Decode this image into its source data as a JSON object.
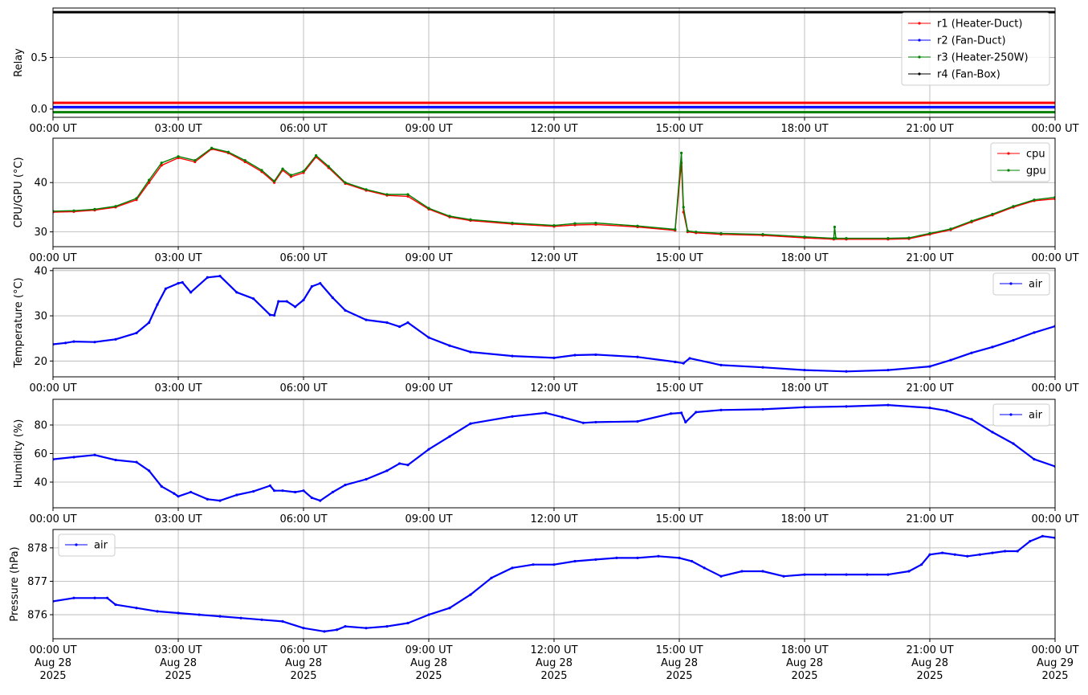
{
  "chart_data": [
    {
      "type": "line",
      "ylabel": "Relay",
      "ylim": [
        -0.08,
        0.98
      ],
      "yticks": [
        0.0,
        0.5
      ],
      "ytick_labels": [
        "0.0",
        "0.5"
      ],
      "grid": true,
      "legend_placement": "top-right",
      "x_tick_labels": [
        "00:00 UT",
        "03:00 UT",
        "06:00 UT",
        "09:00 UT",
        "12:00 UT",
        "15:00 UT",
        "18:00 UT",
        "21:00 UT",
        "00:00 UT"
      ],
      "series": [
        {
          "name": "r1 (Heater-Duct)",
          "color": "#ff0000",
          "x": [
            0,
            24
          ],
          "values": [
            0.06,
            0.06
          ]
        },
        {
          "name": "r2 (Fan-Duct)",
          "color": "#0000ff",
          "x": [
            0,
            24
          ],
          "values": [
            0.02,
            0.02
          ]
        },
        {
          "name": "r3 (Heater-250W)",
          "color": "#008000",
          "x": [
            0,
            24
          ],
          "values": [
            -0.03,
            -0.03
          ]
        },
        {
          "name": "r4 (Fan-Box)",
          "color": "#000000",
          "x": [
            0,
            24
          ],
          "values": [
            0.94,
            0.94
          ]
        }
      ]
    },
    {
      "type": "line",
      "ylabel": "CPU/GPU (°C)",
      "ylim": [
        27,
        49
      ],
      "yticks": [
        30,
        40
      ],
      "ytick_labels": [
        "30",
        "40"
      ],
      "grid": true,
      "legend_placement": "top-right",
      "x_tick_labels": [
        "00:00 UT",
        "03:00 UT",
        "06:00 UT",
        "09:00 UT",
        "12:00 UT",
        "15:00 UT",
        "18:00 UT",
        "21:00 UT",
        "00:00 UT"
      ],
      "series": [
        {
          "name": "cpu",
          "color": "#ff0000",
          "x": [
            0,
            0.5,
            1,
            1.5,
            2,
            2.3,
            2.6,
            3,
            3.4,
            3.8,
            4.2,
            4.6,
            5,
            5.3,
            5.5,
            5.7,
            6,
            6.3,
            6.6,
            7,
            7.5,
            8,
            8.5,
            9,
            9.5,
            10,
            11,
            12,
            12.5,
            13,
            14,
            14.9,
            15.05,
            15.1,
            15.2,
            15.4,
            16,
            17,
            18,
            18.7,
            19,
            20,
            20.5,
            21,
            21.5,
            22,
            22.5,
            23,
            23.5,
            24
          ],
          "values": [
            34,
            34.1,
            34.4,
            35,
            36.5,
            40,
            43.5,
            45,
            44.2,
            46.8,
            46,
            44.2,
            42.2,
            40,
            42.5,
            41.2,
            42,
            45.2,
            43,
            39.8,
            38.4,
            37.4,
            37.2,
            34.6,
            33,
            32.3,
            31.6,
            31.1,
            31.4,
            31.5,
            31,
            30.3,
            44,
            34,
            30,
            29.8,
            29.5,
            29.3,
            28.8,
            28.5,
            28.5,
            28.5,
            28.6,
            29.5,
            30.4,
            32,
            33.4,
            35,
            36.3,
            36.7
          ]
        },
        {
          "name": "gpu",
          "color": "#008000",
          "x": [
            0,
            0.5,
            1,
            1.5,
            2,
            2.3,
            2.6,
            3,
            3.4,
            3.8,
            4.2,
            4.6,
            5,
            5.3,
            5.5,
            5.7,
            6,
            6.3,
            6.6,
            7,
            7.5,
            8,
            8.5,
            9,
            9.5,
            10,
            11,
            12,
            12.5,
            13,
            14,
            14.9,
            15.05,
            15.1,
            15.2,
            15.4,
            16,
            17,
            18,
            18.7,
            18.72,
            18.75,
            19,
            20,
            20.5,
            21,
            21.5,
            22,
            22.5,
            23,
            23.5,
            24
          ],
          "values": [
            34.2,
            34.3,
            34.6,
            35.2,
            36.8,
            40.5,
            44,
            45.3,
            44.5,
            47,
            46.2,
            44.5,
            42.5,
            40.3,
            42.8,
            41.5,
            42.3,
            45.5,
            43.3,
            40,
            38.6,
            37.6,
            37.6,
            34.8,
            33.2,
            32.5,
            31.8,
            31.3,
            31.7,
            31.8,
            31.2,
            30.5,
            46,
            35,
            30.2,
            30,
            29.7,
            29.5,
            29,
            28.7,
            31,
            28.7,
            28.7,
            28.7,
            28.8,
            29.7,
            30.6,
            32.2,
            33.6,
            35.2,
            36.5,
            37
          ]
        }
      ]
    },
    {
      "type": "line",
      "ylabel": "Temperature (°C)",
      "ylim": [
        16.5,
        40.5
      ],
      "yticks": [
        20,
        30,
        40
      ],
      "ytick_labels": [
        "20",
        "30",
        "40"
      ],
      "grid": true,
      "legend_placement": "top-right",
      "x_tick_labels": [
        "00:00 UT",
        "03:00 UT",
        "06:00 UT",
        "09:00 UT",
        "12:00 UT",
        "15:00 UT",
        "18:00 UT",
        "21:00 UT",
        "00:00 UT"
      ],
      "series": [
        {
          "name": "air",
          "color": "#0000ff",
          "x": [
            0,
            0.3,
            0.5,
            1,
            1.5,
            2,
            2.3,
            2.5,
            2.7,
            3,
            3.1,
            3.3,
            3.7,
            4,
            4.4,
            4.8,
            5.2,
            5.3,
            5.4,
            5.6,
            5.8,
            6,
            6.2,
            6.4,
            6.7,
            7,
            7.5,
            8,
            8.3,
            8.5,
            9,
            9.5,
            10,
            11,
            12,
            12.5,
            13,
            14,
            14.9,
            15.1,
            15.25,
            16,
            17,
            18,
            19,
            20,
            21,
            21.5,
            22,
            22.5,
            23,
            23.5,
            24
          ],
          "values": [
            23.7,
            24,
            24.3,
            24.2,
            24.8,
            26.2,
            28.5,
            32.5,
            36,
            37.2,
            37.4,
            35.2,
            38.5,
            38.8,
            35.2,
            33.8,
            30.2,
            30.1,
            33.2,
            33.2,
            32,
            33.5,
            36.5,
            37.2,
            34,
            31.2,
            29.1,
            28.5,
            27.6,
            28.5,
            25.2,
            23.4,
            22,
            21.1,
            20.7,
            21.3,
            21.4,
            20.9,
            19.8,
            19.5,
            20.6,
            19.1,
            18.6,
            18,
            17.7,
            18,
            18.8,
            20.2,
            21.8,
            23.1,
            24.6,
            26.3,
            27.7
          ]
        }
      ]
    },
    {
      "type": "line",
      "ylabel": "Humidity (%)",
      "ylim": [
        22,
        98
      ],
      "yticks": [
        40,
        60,
        80
      ],
      "ytick_labels": [
        "40",
        "60",
        "80"
      ],
      "grid": true,
      "legend_placement": "top-right",
      "x_tick_labels": [
        "00:00 UT",
        "03:00 UT",
        "06:00 UT",
        "09:00 UT",
        "12:00 UT",
        "15:00 UT",
        "18:00 UT",
        "21:00 UT",
        "00:00 UT"
      ],
      "series": [
        {
          "name": "air",
          "color": "#0000ff",
          "x": [
            0,
            0.5,
            1,
            1.5,
            2,
            2.3,
            2.6,
            2.9,
            3,
            3.3,
            3.7,
            4,
            4.4,
            4.8,
            5.2,
            5.3,
            5.5,
            5.8,
            6,
            6.2,
            6.4,
            6.7,
            7,
            7.5,
            8,
            8.3,
            8.5,
            9,
            9.5,
            10,
            11,
            11.8,
            12.2,
            12.7,
            13,
            14,
            14.8,
            15.05,
            15.15,
            15.4,
            16,
            17,
            18,
            19,
            20,
            21,
            21.4,
            22,
            22.5,
            23,
            23.5,
            24
          ],
          "values": [
            56,
            57.5,
            59,
            55.5,
            54,
            48,
            37,
            32,
            30,
            33,
            28,
            27,
            31,
            33.5,
            37.5,
            34,
            34,
            33,
            34,
            29,
            27,
            33,
            38,
            42,
            48,
            53,
            52,
            63,
            72,
            81,
            86,
            88.5,
            85.5,
            81.5,
            82,
            82.5,
            88,
            88.5,
            82,
            89,
            90.5,
            91,
            92.5,
            93,
            94,
            92,
            90,
            84,
            75,
            67,
            56,
            51
          ]
        }
      ]
    },
    {
      "type": "line",
      "ylabel": "Pressure (hPa)",
      "ylim": [
        875.28,
        878.55
      ],
      "yticks": [
        876,
        877,
        878
      ],
      "ytick_labels": [
        "876",
        "877",
        "878"
      ],
      "grid": true,
      "legend_placement": "top-left",
      "x_tick_labels": [
        "00:00 UT",
        "03:00 UT",
        "06:00 UT",
        "09:00 UT",
        "12:00 UT",
        "15:00 UT",
        "18:00 UT",
        "21:00 UT",
        "00:00 UT"
      ],
      "x_tick_date_labels": [
        "Aug 28",
        "Aug 28",
        "Aug 28",
        "Aug 28",
        "Aug 28",
        "Aug 28",
        "Aug 28",
        "Aug 28",
        "Aug 29"
      ],
      "x_tick_year_labels": [
        "2025",
        "2025",
        "2025",
        "2025",
        "2025",
        "2025",
        "2025",
        "2025",
        "2025"
      ],
      "series": [
        {
          "name": "air",
          "color": "#0000ff",
          "x": [
            0,
            0.5,
            1,
            1.3,
            1.5,
            2,
            2.5,
            3,
            3.5,
            4,
            4.5,
            5,
            5.5,
            6,
            6.5,
            6.8,
            7,
            7.5,
            8,
            8.5,
            9,
            9.5,
            10,
            10.5,
            11,
            11.5,
            12,
            12.5,
            13,
            13.5,
            14,
            14.5,
            15,
            15.3,
            15.6,
            16,
            16.5,
            17,
            17.5,
            18,
            18.5,
            19,
            19.5,
            20,
            20.5,
            20.8,
            21,
            21.3,
            21.6,
            21.9,
            22.2,
            22.5,
            22.8,
            23.1,
            23.4,
            23.7,
            24
          ],
          "values": [
            876.4,
            876.5,
            876.5,
            876.5,
            876.3,
            876.2,
            876.1,
            876.05,
            876,
            875.95,
            875.9,
            875.85,
            875.8,
            875.6,
            875.5,
            875.55,
            875.65,
            875.6,
            875.65,
            875.75,
            876,
            876.2,
            876.6,
            877.1,
            877.4,
            877.5,
            877.5,
            877.6,
            877.65,
            877.7,
            877.7,
            877.75,
            877.7,
            877.6,
            877.4,
            877.15,
            877.3,
            877.3,
            877.15,
            877.2,
            877.2,
            877.2,
            877.2,
            877.2,
            877.3,
            877.5,
            877.8,
            877.85,
            877.8,
            877.75,
            877.8,
            877.85,
            877.9,
            877.9,
            878.2,
            878.35,
            878.3
          ]
        }
      ]
    }
  ]
}
